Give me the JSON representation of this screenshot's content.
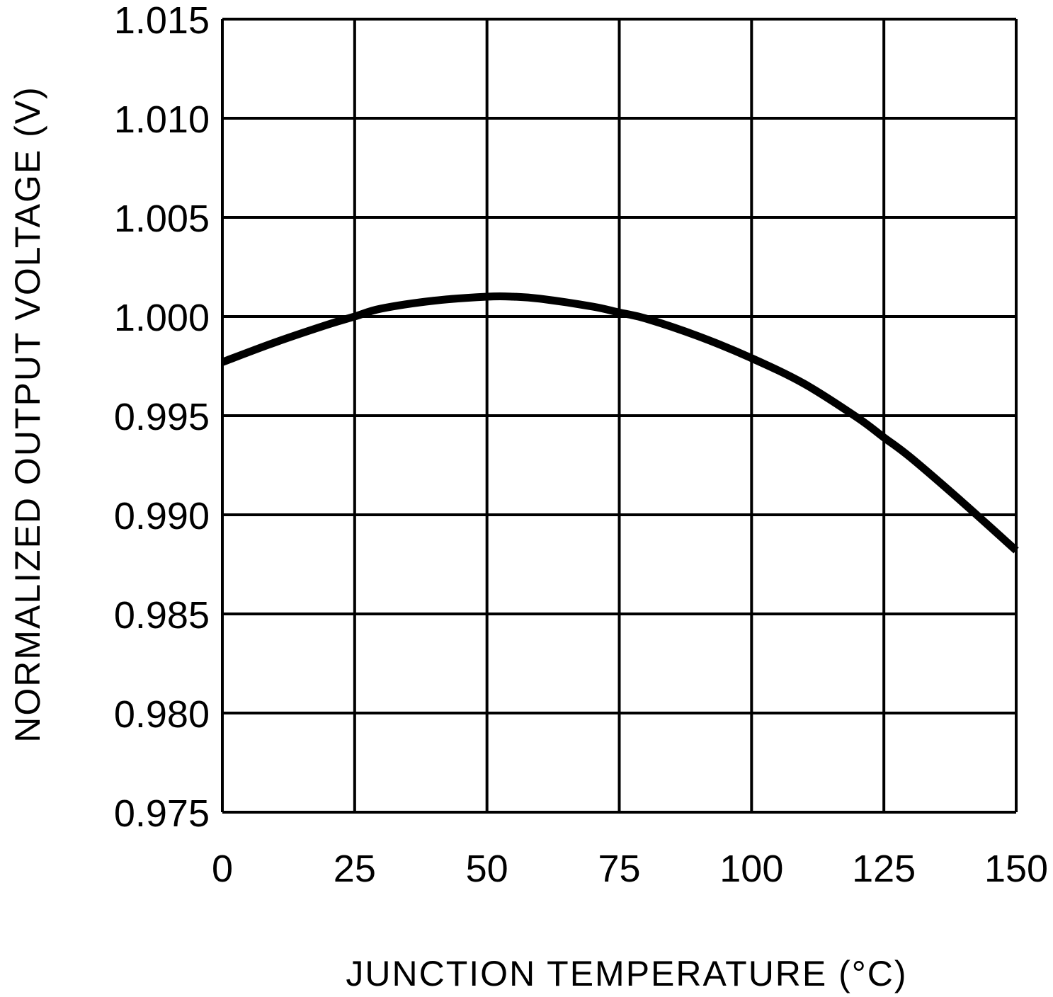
{
  "chart_data": {
    "type": "line",
    "title": "",
    "xlabel": "JUNCTION TEMPERATURE (°C)",
    "ylabel": "NORMALIZED OUTPUT VOLTAGE (V)",
    "xlim": [
      0,
      150
    ],
    "ylim": [
      0.975,
      1.015
    ],
    "x_ticks": [
      0,
      25,
      50,
      75,
      100,
      125,
      150
    ],
    "x_tick_labels": [
      "0",
      "25",
      "50",
      "75",
      "100",
      "125",
      "150"
    ],
    "y_ticks": [
      0.975,
      0.98,
      0.985,
      0.99,
      0.995,
      1.0,
      1.005,
      1.01,
      1.015
    ],
    "y_tick_labels": [
      "0.975",
      "0.980",
      "0.985",
      "0.990",
      "0.995",
      "1.000",
      "1.005",
      "1.010",
      "1.015"
    ],
    "grid": true,
    "series": [
      {
        "color": "#000000",
        "x": [
          0,
          10,
          20,
          25,
          30,
          40,
          50,
          55,
          60,
          70,
          75,
          80,
          90,
          100,
          110,
          120,
          125,
          130,
          140,
          150
        ],
        "y": [
          0.9977,
          0.9987,
          0.9996,
          1.0,
          1.0004,
          1.0008,
          1.001,
          1.001,
          1.0009,
          1.0005,
          1.0002,
          0.9999,
          0.999,
          0.9979,
          0.9966,
          0.9949,
          0.9939,
          0.9929,
          0.9906,
          0.9882
        ]
      }
    ]
  }
}
